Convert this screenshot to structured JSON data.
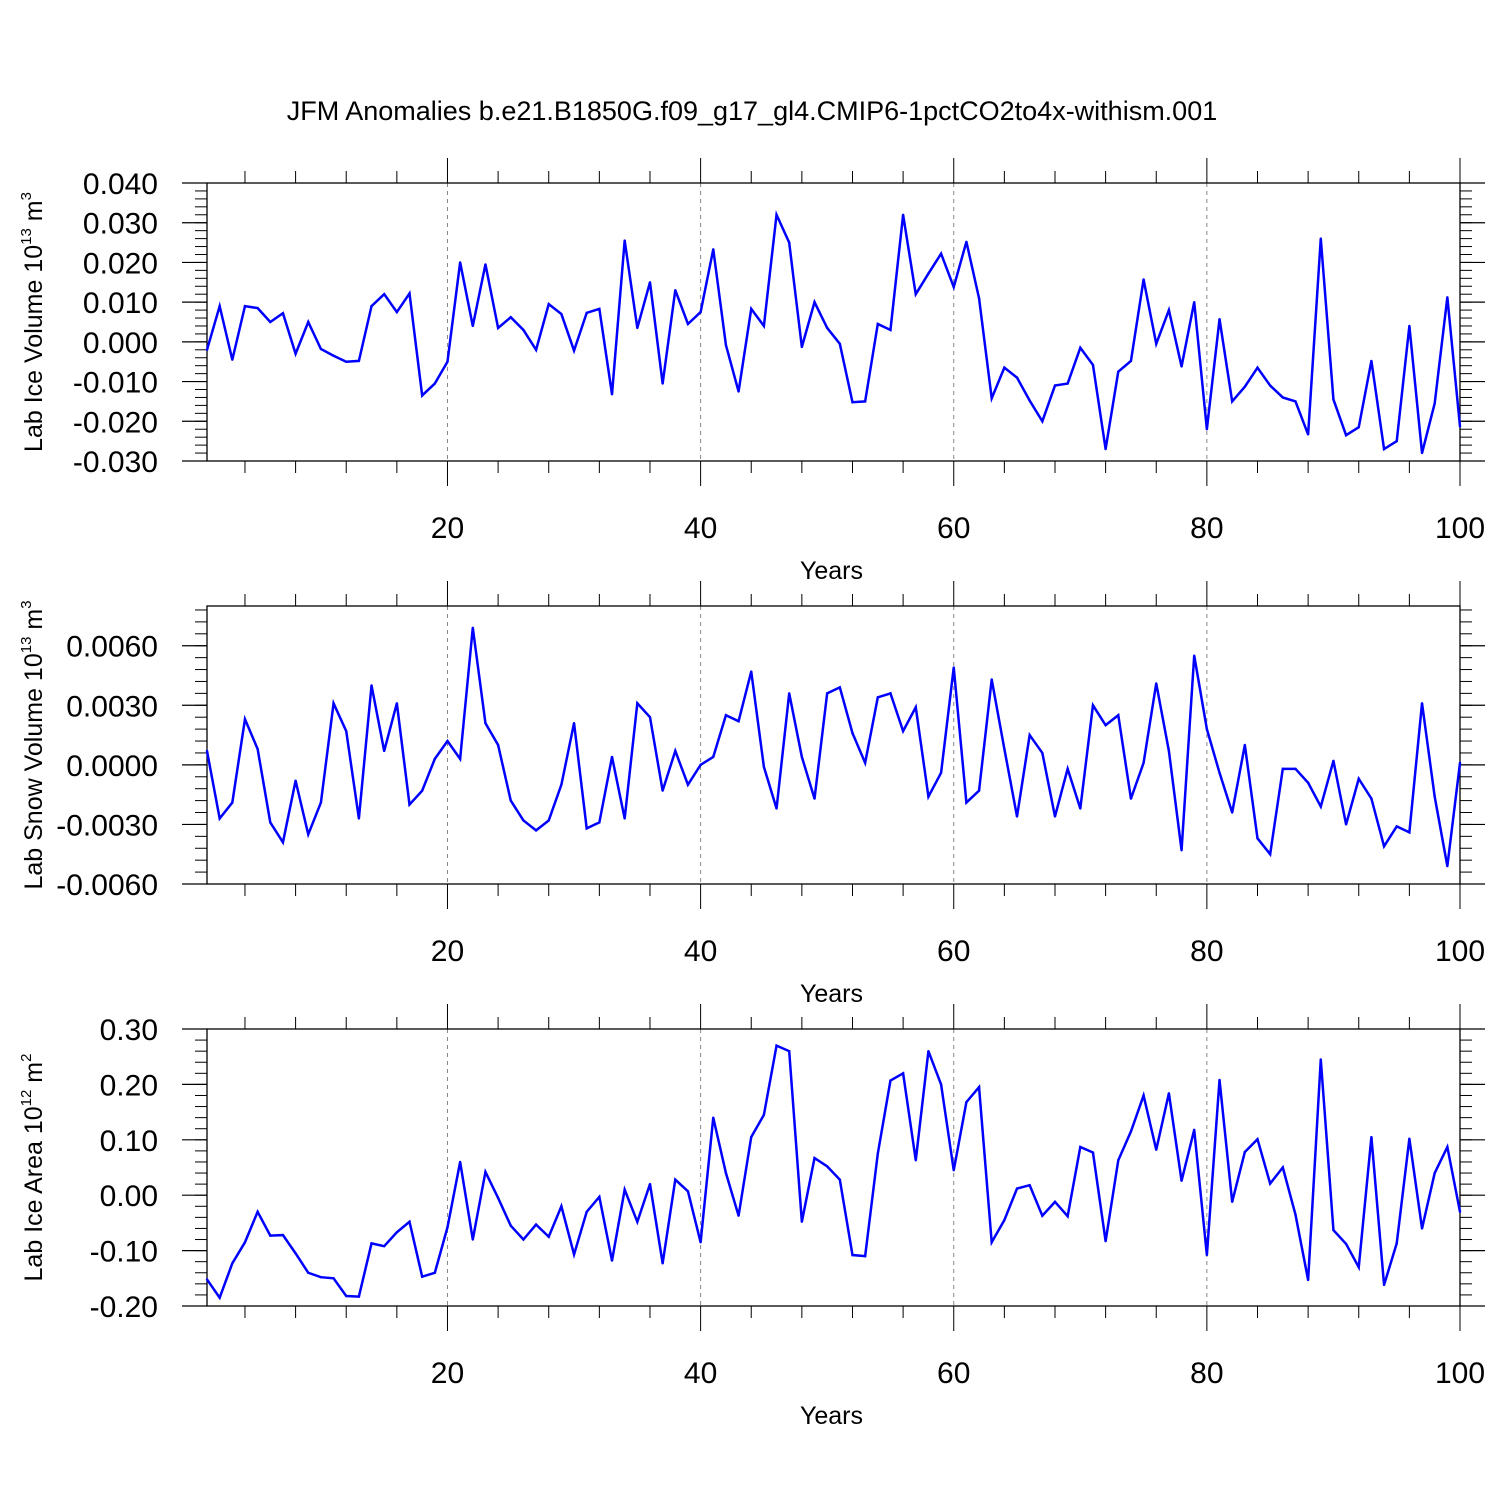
{
  "title": "JFM Anomalies b.e21.B1850G.f09_g17_gl4.CMIP6-1pctCO2to4x-withism.001",
  "colors": {
    "line": "#0000ff",
    "axis": "#000000",
    "grid": "#888888"
  },
  "chart_data": [
    {
      "type": "line",
      "xlabel": "Years",
      "ylabel": {
        "prefix": "Lab Ice Volume 10",
        "exp": "13",
        "unit": " m",
        "unitExp": "3"
      },
      "xlim": [
        1,
        100
      ],
      "ylim": [
        -0.03,
        0.04
      ],
      "xticks": [
        20,
        40,
        60,
        80,
        100
      ],
      "xtick_labels": [
        "20",
        "40",
        "60",
        "80",
        "100"
      ],
      "yticks": [
        -0.03,
        -0.02,
        -0.01,
        0.0,
        0.01,
        0.02,
        0.03,
        0.04
      ],
      "ytick_labels": [
        "-0.030",
        "-0.020",
        "-0.010",
        "0.000",
        "0.010",
        "0.020",
        "0.030",
        "0.040"
      ],
      "grid_x": [
        20,
        40,
        60,
        80
      ],
      "x": [
        1,
        2,
        3,
        4,
        5,
        6,
        7,
        8,
        9,
        10,
        11,
        12,
        13,
        14,
        15,
        16,
        17,
        18,
        19,
        20,
        21,
        22,
        23,
        24,
        25,
        26,
        27,
        28,
        29,
        30,
        31,
        32,
        33,
        34,
        35,
        36,
        37,
        38,
        39,
        40,
        41,
        42,
        43,
        44,
        45,
        46,
        47,
        48,
        49,
        50,
        51,
        52,
        53,
        54,
        55,
        56,
        57,
        58,
        59,
        60,
        61,
        62,
        63,
        64,
        65,
        66,
        67,
        68,
        69,
        70,
        71,
        72,
        73,
        74,
        75,
        76,
        77,
        78,
        79,
        80,
        81,
        82,
        83,
        84,
        85,
        86,
        87,
        88,
        89,
        90,
        91,
        92,
        93,
        94,
        95,
        96,
        97,
        98,
        99,
        100
      ],
      "series": [
        {
          "name": "Lab Ice Volume",
          "values": [
            -0.002,
            0.009,
            -0.0045,
            0.009,
            0.0085,
            0.005,
            0.0072,
            -0.003,
            0.005,
            -0.0018,
            -0.0035,
            -0.005,
            -0.0048,
            0.009,
            0.012,
            0.0075,
            0.0122,
            -0.0135,
            -0.0105,
            -0.005,
            0.02,
            0.004,
            0.0195,
            0.0035,
            0.0062,
            0.003,
            -0.002,
            0.0095,
            0.007,
            -0.0022,
            0.0073,
            0.0083,
            -0.0132,
            0.0255,
            0.0035,
            0.015,
            -0.0105,
            0.013,
            0.0045,
            0.0075,
            0.0233,
            -0.0008,
            -0.0125,
            0.0083,
            0.004,
            0.032,
            0.025,
            -0.0013,
            0.01,
            0.0035,
            -0.0005,
            -0.0152,
            -0.015,
            0.0045,
            0.003,
            0.032,
            0.012,
            0.0172,
            0.0222,
            0.0138,
            0.0252,
            0.011,
            -0.0142,
            -0.0065,
            -0.009,
            -0.0148,
            -0.02,
            -0.011,
            -0.0105,
            -0.0015,
            -0.0058,
            -0.027,
            -0.0075,
            -0.0048,
            0.0157,
            -0.0005,
            0.008,
            -0.0062,
            0.01,
            -0.022,
            0.0057,
            -0.015,
            -0.0113,
            -0.0065,
            -0.011,
            -0.014,
            -0.015,
            -0.0233,
            0.026,
            -0.0145,
            -0.0235,
            -0.0215,
            -0.0048,
            -0.027,
            -0.025,
            0.004,
            -0.028,
            -0.0155,
            0.0112,
            -0.0213
          ]
        }
      ]
    },
    {
      "type": "line",
      "xlabel": "Years",
      "ylabel": {
        "prefix": "Lab Snow Volume 10",
        "exp": "13",
        "unit": " m",
        "unitExp": "3"
      },
      "xlim": [
        1,
        100
      ],
      "ylim": [
        -0.006,
        0.008
      ],
      "xticks": [
        20,
        40,
        60,
        80,
        100
      ],
      "xtick_labels": [
        "20",
        "40",
        "60",
        "80",
        "100"
      ],
      "yticks": [
        -0.006,
        -0.003,
        0.0,
        0.003,
        0.006
      ],
      "ytick_labels": [
        "-0.0060",
        "-0.0030",
        "0.0000",
        "0.0030",
        "0.0060"
      ],
      "grid_x": [
        20,
        40,
        60,
        80
      ],
      "x": [
        1,
        2,
        3,
        4,
        5,
        6,
        7,
        8,
        9,
        10,
        11,
        12,
        13,
        14,
        15,
        16,
        17,
        18,
        19,
        20,
        21,
        22,
        23,
        24,
        25,
        26,
        27,
        28,
        29,
        30,
        31,
        32,
        33,
        34,
        35,
        36,
        37,
        38,
        39,
        40,
        41,
        42,
        43,
        44,
        45,
        46,
        47,
        48,
        49,
        50,
        51,
        52,
        53,
        54,
        55,
        56,
        57,
        58,
        59,
        60,
        61,
        62,
        63,
        64,
        65,
        66,
        67,
        68,
        69,
        70,
        71,
        72,
        73,
        74,
        75,
        76,
        77,
        78,
        79,
        80,
        81,
        82,
        83,
        84,
        85,
        86,
        87,
        88,
        89,
        90,
        91,
        92,
        93,
        94,
        95,
        96,
        97,
        98,
        99,
        100
      ],
      "series": [
        {
          "name": "Lab Snow Volume",
          "values": [
            0.0007,
            -0.0027,
            -0.0019,
            0.0023,
            0.0008,
            -0.0029,
            -0.0039,
            -0.0008,
            -0.0035,
            -0.0019,
            0.0031,
            0.0017,
            -0.0027,
            0.004,
            0.0007,
            0.0031,
            -0.002,
            -0.0013,
            0.0003,
            0.0012,
            0.0003,
            0.0069,
            0.0021,
            0.001,
            -0.0018,
            -0.0028,
            -0.0033,
            -0.0028,
            -0.001,
            0.0021,
            -0.0032,
            -0.0029,
            0.0004,
            -0.0027,
            0.0031,
            0.0024,
            -0.0013,
            0.0007,
            -0.001,
            0.0,
            0.0004,
            0.0025,
            0.0022,
            0.0047,
            -0.0001,
            -0.0022,
            0.0036,
            0.0004,
            -0.0017,
            0.0036,
            0.0039,
            0.0016,
            0.0001,
            0.0034,
            0.0036,
            0.0017,
            0.0029,
            -0.0016,
            -0.0004,
            0.0049,
            -0.0019,
            -0.0013,
            0.0043,
            0.0008,
            -0.0026,
            0.0015,
            0.0006,
            -0.0026,
            -0.0002,
            -0.0022,
            0.003,
            0.002,
            0.0025,
            -0.0017,
            0.0001,
            0.0041,
            0.0007,
            -0.0043,
            0.0055,
            0.0018,
            -0.0004,
            -0.0024,
            0.001,
            -0.0037,
            -0.0045,
            -0.0002,
            -0.0002,
            -0.0009,
            -0.0021,
            0.0002,
            -0.003,
            -0.0007,
            -0.0017,
            -0.0041,
            -0.0031,
            -0.0034,
            0.0031,
            -0.0016,
            -0.0051,
            0.0001
          ]
        }
      ]
    },
    {
      "type": "line",
      "xlabel": "Years",
      "ylabel": {
        "prefix": "Lab Ice Area 10",
        "exp": "12",
        "unit": " m",
        "unitExp": "2"
      },
      "xlim": [
        1,
        100
      ],
      "ylim": [
        -0.2,
        0.3
      ],
      "xticks": [
        20,
        40,
        60,
        80,
        100
      ],
      "xtick_labels": [
        "20",
        "40",
        "60",
        "80",
        "100"
      ],
      "yticks": [
        -0.2,
        -0.1,
        0.0,
        0.1,
        0.2,
        0.3
      ],
      "ytick_labels": [
        "-0.20",
        "-0.10",
        "0.00",
        "0.10",
        "0.20",
        "0.30"
      ],
      "grid_x": [
        20,
        40,
        60,
        80
      ],
      "x": [
        1,
        2,
        3,
        4,
        5,
        6,
        7,
        8,
        9,
        10,
        11,
        12,
        13,
        14,
        15,
        16,
        17,
        18,
        19,
        20,
        21,
        22,
        23,
        24,
        25,
        26,
        27,
        28,
        29,
        30,
        31,
        32,
        33,
        34,
        35,
        36,
        37,
        38,
        39,
        40,
        41,
        42,
        43,
        44,
        45,
        46,
        47,
        48,
        49,
        50,
        51,
        52,
        53,
        54,
        55,
        56,
        57,
        58,
        59,
        60,
        61,
        62,
        63,
        64,
        65,
        66,
        67,
        68,
        69,
        70,
        71,
        72,
        73,
        74,
        75,
        76,
        77,
        78,
        79,
        80,
        81,
        82,
        83,
        84,
        85,
        86,
        87,
        88,
        89,
        90,
        91,
        92,
        93,
        94,
        95,
        96,
        97,
        98,
        99,
        100
      ],
      "series": [
        {
          "name": "Lab Ice Area",
          "values": [
            -0.152,
            -0.185,
            -0.123,
            -0.085,
            -0.03,
            -0.073,
            -0.072,
            -0.105,
            -0.14,
            -0.148,
            -0.15,
            -0.182,
            -0.183,
            -0.087,
            -0.092,
            -0.067,
            -0.048,
            -0.147,
            -0.14,
            -0.058,
            0.06,
            -0.08,
            0.042,
            -0.005,
            -0.055,
            -0.08,
            -0.053,
            -0.075,
            -0.02,
            -0.107,
            -0.03,
            -0.003,
            -0.118,
            0.01,
            -0.048,
            0.02,
            -0.123,
            0.028,
            0.007,
            -0.085,
            0.14,
            0.04,
            -0.037,
            0.105,
            0.145,
            0.27,
            0.26,
            -0.048,
            0.067,
            0.052,
            0.028,
            -0.108,
            -0.11,
            0.075,
            0.207,
            0.22,
            0.063,
            0.26,
            0.2,
            0.045,
            0.168,
            0.195,
            -0.085,
            -0.045,
            0.012,
            0.018,
            -0.037,
            -0.012,
            -0.038,
            0.087,
            0.077,
            -0.083,
            0.063,
            0.115,
            0.18,
            0.082,
            0.184,
            0.026,
            0.118,
            -0.108,
            0.208,
            -0.012,
            0.078,
            0.101,
            0.021,
            0.05,
            -0.035,
            -0.153,
            0.245,
            -0.063,
            -0.088,
            -0.13,
            0.105,
            -0.162,
            -0.087,
            0.102,
            -0.06,
            0.04,
            0.087,
            -0.03
          ]
        }
      ]
    }
  ]
}
